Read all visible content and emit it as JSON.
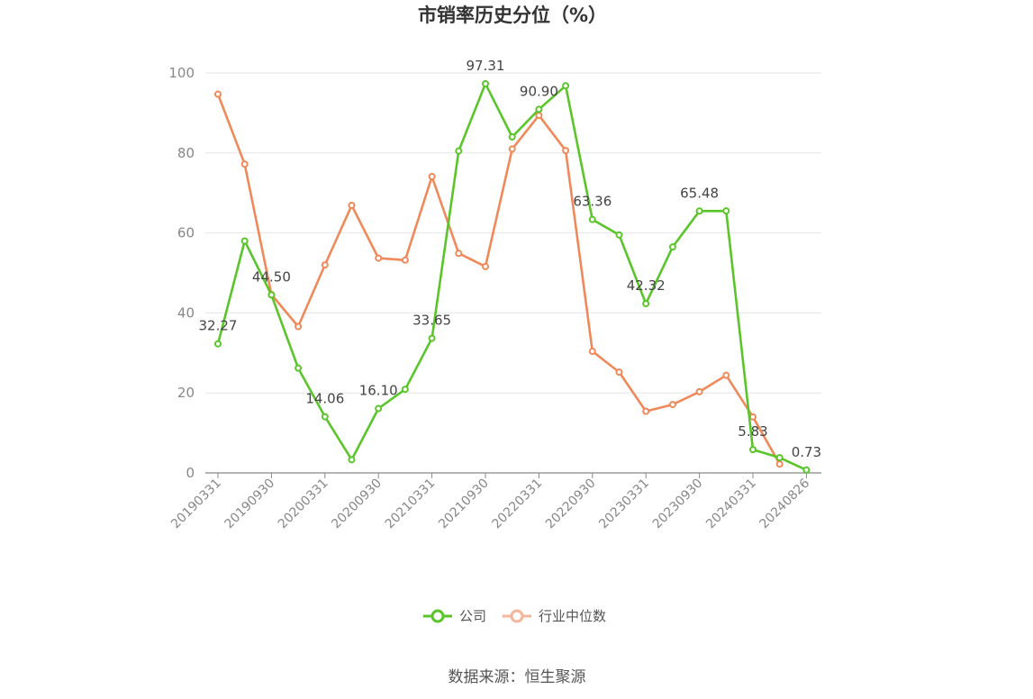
{
  "chart_data": {
    "type": "line",
    "title": "市销率历史分位（%）",
    "source": "数据来源：恒生聚源",
    "ylim": [
      0,
      100
    ],
    "yticks": [
      0,
      20,
      40,
      60,
      80,
      100
    ],
    "xtick_labels": [
      "20190331",
      "20190930",
      "20200331",
      "20200930",
      "20210331",
      "20210930",
      "20220331",
      "20220930",
      "20230331",
      "20230930",
      "20240331",
      "20240826"
    ],
    "x": [
      "20190331",
      "20190630",
      "20190930",
      "20191231",
      "20200331",
      "20200630",
      "20200930",
      "20201231",
      "20210331",
      "20210630",
      "20210930",
      "20211231",
      "20220331",
      "20220630",
      "20220930",
      "20221231",
      "20230331",
      "20230630",
      "20230930",
      "20231231",
      "20240331",
      "20240630",
      "20240826"
    ],
    "grid": true,
    "legend_position": "bottom",
    "series": [
      {
        "name": "公司",
        "color": "#5ac52a",
        "values": [
          32.27,
          58.0,
          44.5,
          26.2,
          14.06,
          3.3,
          16.1,
          20.9,
          33.65,
          80.5,
          97.31,
          84.0,
          90.9,
          96.8,
          63.36,
          59.5,
          42.32,
          56.5,
          65.48,
          65.5,
          5.83,
          3.8,
          0.73
        ],
        "labels": {
          "0": "32.27",
          "2": "44.50",
          "4": "14.06",
          "6": "16.10",
          "8": "33.65",
          "10": "97.31",
          "12": "90.90",
          "14": "63.36",
          "16": "42.32",
          "18": "65.48",
          "20": "5.83",
          "22": "0.73"
        }
      },
      {
        "name": "行业中位数",
        "color": "#f0895a",
        "values": [
          94.7,
          77.2,
          44.6,
          36.6,
          52.0,
          66.9,
          53.7,
          53.2,
          74.1,
          54.9,
          51.6,
          81.0,
          89.4,
          80.6,
          30.4,
          25.2,
          15.4,
          17.1,
          20.3,
          24.4,
          14.0,
          2.2,
          null
        ]
      }
    ]
  }
}
